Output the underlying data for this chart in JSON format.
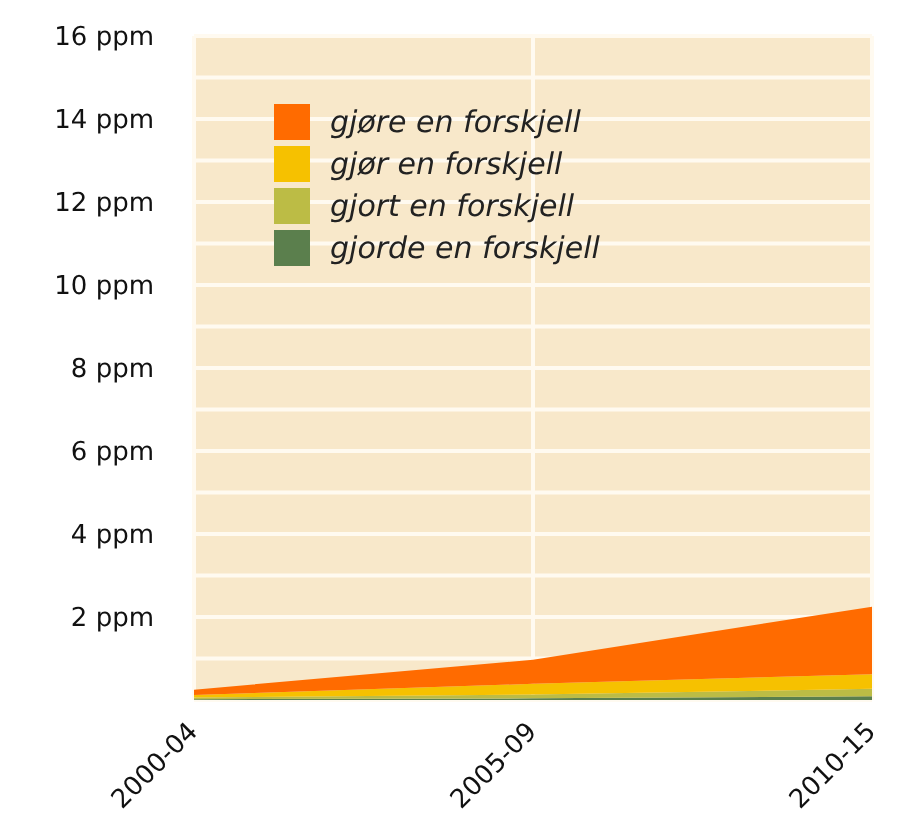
{
  "chart_data": {
    "type": "area",
    "stacked": true,
    "categories": [
      "2000-04",
      "2005-09",
      "2010-15"
    ],
    "series": [
      {
        "name": "gjorde en forskjell",
        "color": "#5b7f4d",
        "values": [
          0.02,
          0.04,
          0.09
        ]
      },
      {
        "name": "gjort en forskjell",
        "color": "#bcbc45",
        "values": [
          0.04,
          0.09,
          0.18
        ]
      },
      {
        "name": "gjør en forskjell",
        "color": "#f6c100",
        "values": [
          0.06,
          0.26,
          0.35
        ]
      },
      {
        "name": "gjøre en forskjell",
        "color": "#ff6b00",
        "values": [
          0.13,
          0.58,
          1.63
        ]
      }
    ],
    "ylim": [
      0,
      16
    ],
    "yticks": [
      {
        "value": 0,
        "label": null
      },
      {
        "value": 1,
        "label": null
      },
      {
        "value": 2,
        "label": "2 ppm"
      },
      {
        "value": 3,
        "label": null
      },
      {
        "value": 4,
        "label": "4 ppm"
      },
      {
        "value": 5,
        "label": null
      },
      {
        "value": 6,
        "label": "6 ppm"
      },
      {
        "value": 7,
        "label": null
      },
      {
        "value": 8,
        "label": "8 ppm"
      },
      {
        "value": 9,
        "label": null
      },
      {
        "value": 10,
        "label": "10 ppm"
      },
      {
        "value": 11,
        "label": null
      },
      {
        "value": 12,
        "label": "12 ppm"
      },
      {
        "value": 13,
        "label": null
      },
      {
        "value": 14,
        "label": "14 ppm"
      },
      {
        "value": 15,
        "label": null
      },
      {
        "value": 16,
        "label": "16 ppm"
      }
    ],
    "grid": true,
    "legend": "top left"
  }
}
